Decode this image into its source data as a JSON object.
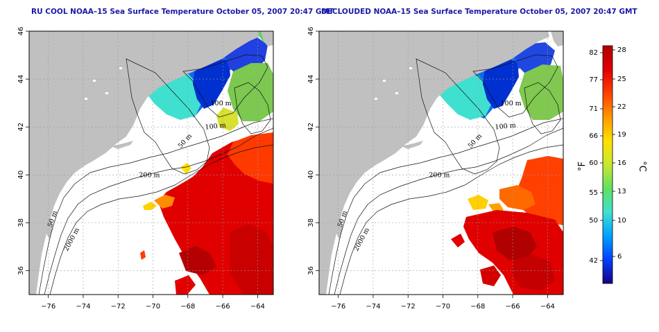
{
  "panels": [
    {
      "title": "RU COOL NOAA–15 Sea Surface Temperature October 05, 2007 20:47 GMT",
      "variant": "cool"
    },
    {
      "title": "DECLOUDED NOAA–15 Sea Surface Temperature October 05, 2007 20:47 GMT",
      "variant": "declouded"
    }
  ],
  "axes": {
    "lon_ticks": [
      "−76",
      "−74",
      "−72",
      "−70",
      "−68",
      "−66",
      "−64"
    ],
    "lon_values": [
      -76,
      -74,
      -72,
      -70,
      -68,
      -66,
      -64
    ],
    "lat_ticks": [
      "36",
      "38",
      "40",
      "42",
      "44",
      "46"
    ],
    "lat_values": [
      36,
      38,
      40,
      42,
      44,
      46
    ],
    "lon_range": [
      -77.1,
      -63.1
    ],
    "lat_range": [
      35,
      46
    ]
  },
  "contour_labels": {
    "c100_north": "100 m",
    "c100_mid": "100 m",
    "c50": "50 m",
    "c200": "200 m",
    "c50_coast": "50 m",
    "c2000": "2000 m"
  },
  "colorbar": {
    "unit_f": "°F",
    "unit_c": "°C",
    "fahrenheit_ticks": [
      "82",
      "77",
      "71",
      "66",
      "60",
      "55",
      "50",
      "42"
    ],
    "celsius_ticks": [
      "28",
      "25",
      "22",
      "19",
      "16",
      "13",
      "10",
      "6"
    ],
    "colors": [
      "#1a0080",
      "#0040ff",
      "#00a0ff",
      "#40e0d0",
      "#60e060",
      "#c8e830",
      "#ffe000",
      "#ff9800",
      "#ff4000",
      "#e00000",
      "#b00000"
    ]
  },
  "colors": {
    "land": "#c0c0c0",
    "grid": "#9a9a9a",
    "title": "#1a1aa6"
  }
}
